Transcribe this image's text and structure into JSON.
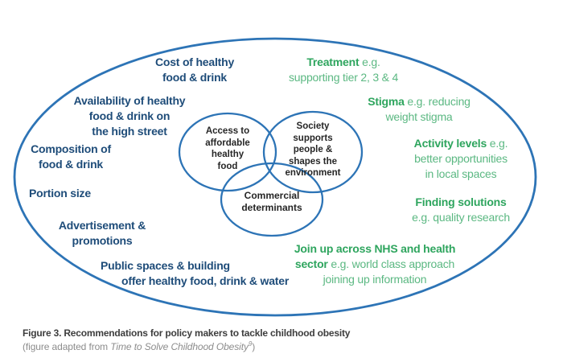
{
  "colors": {
    "stroke": "#2D74B6",
    "blue_text": "#1E4C79",
    "green_bold": "#2EA55E",
    "green_text": "#5BB882",
    "circle_text": "#262626",
    "caption_title": "#3D3D3D",
    "caption_note": "#8C8C8C"
  },
  "venn": {
    "access": {
      "lines": [
        "Access to",
        "affordable",
        "healthy",
        "food"
      ]
    },
    "society": {
      "lines": [
        "Society",
        "supports",
        "people &",
        "shapes the",
        "environment"
      ]
    },
    "commercial": {
      "lines": [
        "Commercial",
        "determinants"
      ]
    }
  },
  "blue_labels": {
    "cost": {
      "lines": [
        "Cost of healthy",
        "food & drink"
      ]
    },
    "availability": {
      "lines": [
        "Availability of healthy",
        "food & drink on",
        "the high street"
      ]
    },
    "composition": {
      "lines": [
        "Composition of",
        "food & drink"
      ]
    },
    "portion": {
      "lines": [
        "Portion size"
      ]
    },
    "advertisement": {
      "lines": [
        "Advertisement &",
        "promotions"
      ]
    },
    "public_spaces": {
      "lines": [
        "Public spaces & building",
        "offer healthy food, drink & water"
      ]
    }
  },
  "green_labels": {
    "treatment": {
      "lines": [
        [
          {
            "t": "Treatment",
            "b": true
          },
          {
            "t": " e.g."
          }
        ],
        [
          "supporting tier 2, 3 & 4"
        ]
      ]
    },
    "stigma": {
      "lines": [
        [
          {
            "t": "Stigma",
            "b": true
          },
          {
            "t": " e.g. reducing"
          }
        ],
        [
          "weight stigma"
        ]
      ]
    },
    "activity": {
      "lines": [
        [
          {
            "t": "Activity levels",
            "b": true
          },
          {
            "t": " e.g."
          }
        ],
        [
          "better opportunities"
        ],
        [
          "in local spaces"
        ]
      ]
    },
    "finding": {
      "lines": [
        [
          {
            "t": "Finding solutions",
            "b": true
          }
        ],
        [
          "e.g. quality research"
        ]
      ]
    },
    "join_up": {
      "lines": [
        [
          {
            "t": "Join up across NHS and health",
            "b": true
          }
        ],
        [
          {
            "t": "sector",
            "b": true
          },
          {
            "t": " e.g. world class approach"
          }
        ],
        [
          "joining up information"
        ]
      ]
    }
  },
  "caption": {
    "title": "Figure 3. Recommendations for policy makers to tackle childhood obesity",
    "note_prefix": "(figure adapted from ",
    "note_source": "Time to Solve Childhood Obesity",
    "note_ref": "9",
    "note_suffix": ")"
  }
}
